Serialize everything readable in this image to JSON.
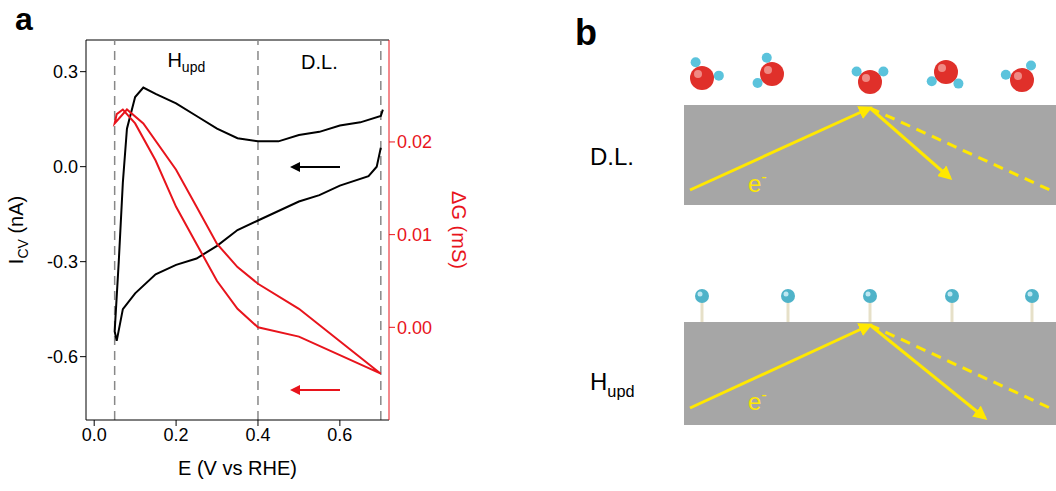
{
  "chart_data": {
    "type": "line",
    "panel_label": "a",
    "x_label": "E (V vs RHE)",
    "y_label": {
      "text": "I",
      "subscript": "CV",
      "suffix": " (nA)"
    },
    "y2_label": "ΔG (mS)",
    "xlim": [
      -0.02,
      0.72
    ],
    "xticks": [
      {
        "value": 0,
        "label": "0.0"
      },
      0.2,
      0.4,
      0.6
    ],
    "ylim": [
      -0.8,
      0.4
    ],
    "yticks": [
      -0.6,
      -0.3,
      {
        "value": 0,
        "label": "0.0"
      },
      0.3
    ],
    "y2lim": [
      -0.01,
      0.031
    ],
    "y2ticks": [
      {
        "value": 0,
        "label": "0.00"
      },
      0.01,
      0.02
    ],
    "reference_lines": [
      0.05,
      0.4,
      0.7
    ],
    "regions": [
      {
        "text": "H",
        "subscript": "upd"
      },
      {
        "text": "D.L."
      }
    ],
    "series": [
      {
        "color": "#000000",
        "x": [
          0.7,
          0.69,
          0.67,
          0.6,
          0.55,
          0.5,
          0.45,
          0.4,
          0.35,
          0.3,
          0.25,
          0.2,
          0.15,
          0.1,
          0.07,
          0.055,
          0.05,
          0.06,
          0.07,
          0.08,
          0.1,
          0.12,
          0.15,
          0.2,
          0.25,
          0.3,
          0.35,
          0.4,
          0.45,
          0.5,
          0.55,
          0.6,
          0.65,
          0.7,
          0.705
        ],
        "values": [
          0.06,
          0.0,
          -0.03,
          -0.06,
          -0.09,
          -0.11,
          -0.14,
          -0.17,
          -0.2,
          -0.25,
          -0.29,
          -0.31,
          -0.34,
          -0.4,
          -0.45,
          -0.55,
          -0.52,
          -0.3,
          -0.05,
          0.12,
          0.22,
          0.25,
          0.23,
          0.2,
          0.16,
          0.12,
          0.09,
          0.08,
          0.08,
          0.1,
          0.11,
          0.13,
          0.14,
          0.16,
          0.18
        ]
      },
      {
        "color": "#e8141c",
        "axis": "y2",
        "x": [
          0.7,
          0.6,
          0.5,
          0.4,
          0.35,
          0.3,
          0.25,
          0.2,
          0.15,
          0.1,
          0.07,
          0.055,
          0.05,
          0.08,
          0.12,
          0.2,
          0.25,
          0.3,
          0.35,
          0.4,
          0.5,
          0.6,
          0.7
        ],
        "values": [
          -0.005,
          -0.003,
          -0.001,
          0.0,
          0.002,
          0.005,
          0.009,
          0.013,
          0.018,
          0.022,
          0.0235,
          0.023,
          0.022,
          0.0235,
          0.022,
          0.017,
          0.013,
          0.009,
          0.0065,
          0.0047,
          0.002,
          -0.0015,
          -0.005
        ]
      }
    ]
  },
  "diagram": {
    "panel_label": "b",
    "rows": [
      {
        "label": {
          "text": "D.L."
        },
        "electron": {
          "text": "e",
          "superscript": "-"
        }
      },
      {
        "label": {
          "text": "H",
          "subscript": "upd"
        },
        "electron": {
          "text": "e",
          "superscript": "-"
        }
      }
    ]
  }
}
